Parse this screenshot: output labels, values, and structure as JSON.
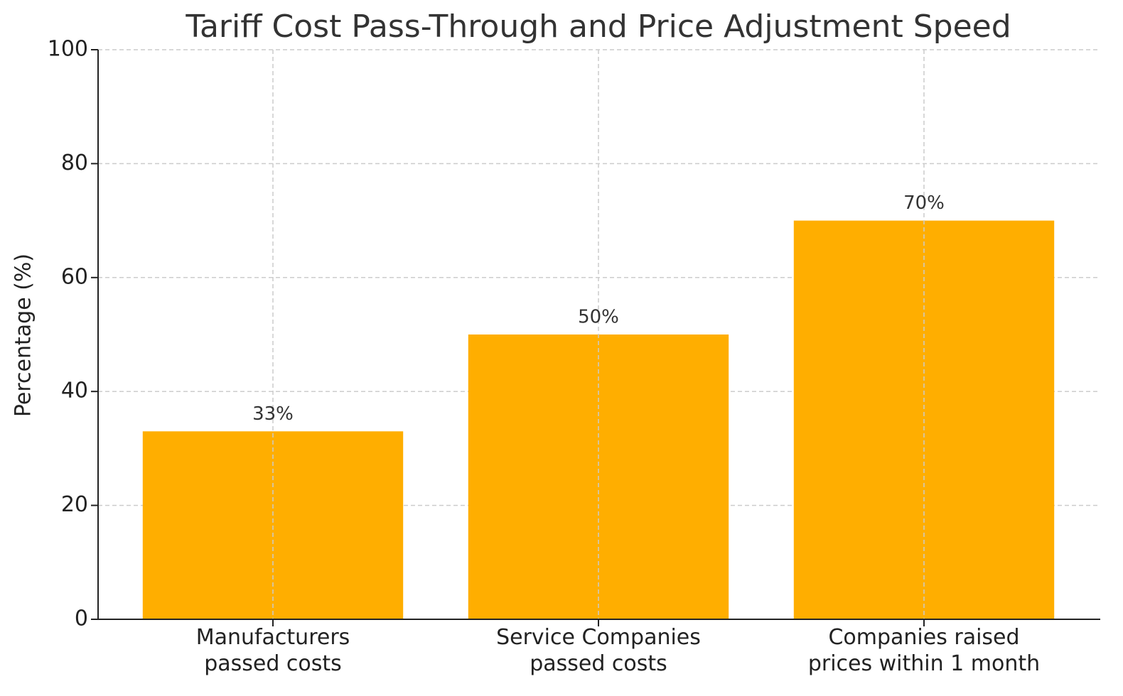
{
  "chart_data": {
    "type": "bar",
    "title": "Tariff Cost Pass-Through and Price Adjustment Speed",
    "y_label": "Percentage (%)",
    "categories": [
      [
        "Manufacturers",
        "passed costs"
      ],
      [
        "Service Companies",
        "passed costs"
      ],
      [
        "Companies raised",
        "prices within 1 month"
      ]
    ],
    "values": [
      33,
      50,
      70
    ],
    "value_labels": [
      "33%",
      "50%",
      "70%"
    ],
    "color": "#ffae00",
    "ylim": [
      0,
      100
    ],
    "yticks": [
      0,
      20,
      40,
      60,
      80,
      100
    ],
    "grid": true
  }
}
